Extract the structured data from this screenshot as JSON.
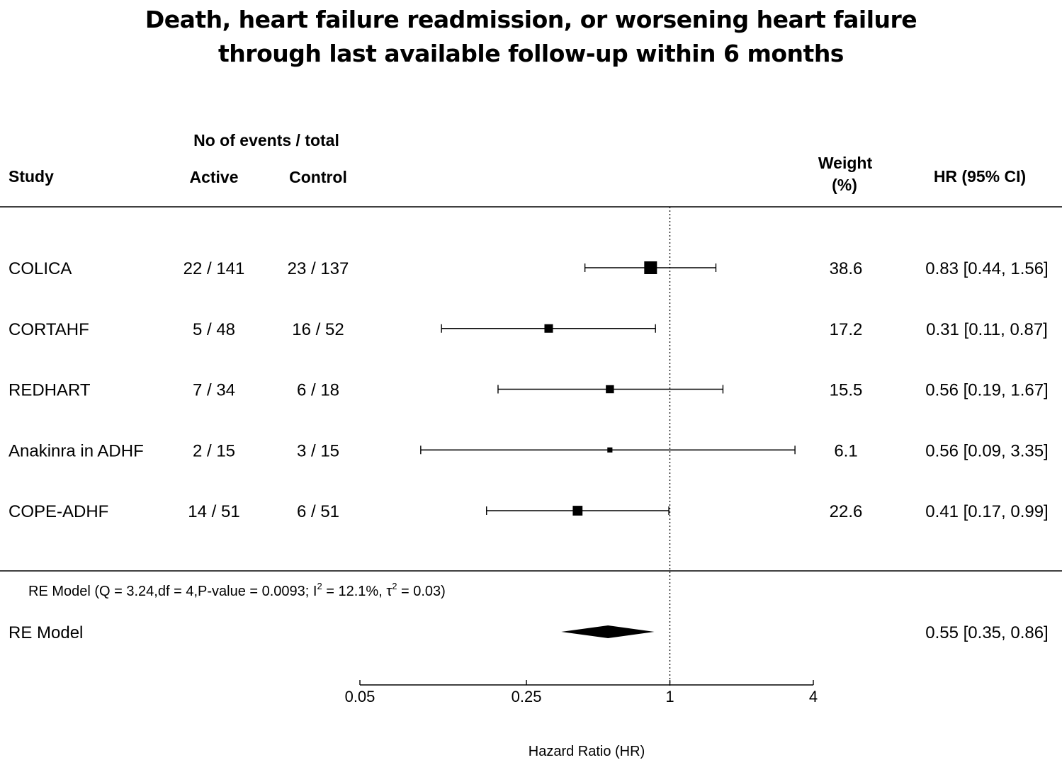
{
  "chart_data": {
    "type": "forest",
    "title_line1": "Death, heart failure readmission, or worsening heart failure",
    "title_line2": "through last available follow-up within 6 months",
    "headers": {
      "group": "No of events / total",
      "study": "Study",
      "active": "Active",
      "control": "Control",
      "weight_line1": "Weight",
      "weight_line2": "(%)",
      "hr": "HR (95% CI)"
    },
    "studies": [
      {
        "name": "COLICA",
        "active": "22 / 141",
        "control": "23 / 137",
        "hr": 0.83,
        "lower": 0.44,
        "upper": 1.56,
        "weight": "38.6",
        "hr_text": "0.83 [0.44, 1.56]"
      },
      {
        "name": "CORTAHF",
        "active": "5 / 48",
        "control": "16 / 52",
        "hr": 0.31,
        "lower": 0.11,
        "upper": 0.87,
        "weight": "17.2",
        "hr_text": "0.31 [0.11, 0.87]"
      },
      {
        "name": "REDHART",
        "active": "7 / 34",
        "control": "6 / 18",
        "hr": 0.56,
        "lower": 0.19,
        "upper": 1.67,
        "weight": "15.5",
        "hr_text": "0.56 [0.19, 1.67]"
      },
      {
        "name": "Anakinra in ADHF",
        "active": "2 / 15",
        "control": "3 / 15",
        "hr": 0.56,
        "lower": 0.09,
        "upper": 3.35,
        "weight": "6.1",
        "hr_text": "0.56 [0.09, 3.35]"
      },
      {
        "name": "COPE-ADHF",
        "active": "14 / 51",
        "control": "6 / 51",
        "hr": 0.41,
        "lower": 0.17,
        "upper": 0.99,
        "weight": "22.6",
        "hr_text": "0.41 [0.17, 0.99]"
      }
    ],
    "model": {
      "stats_a": "RE Model (Q = 3.24,df = 4,P-value = 0.0093; I",
      "stats_sup1": "2",
      "stats_b": " = 12.1%, τ",
      "stats_sup2": "2",
      "stats_c": " = 0.03)",
      "label": "RE Model",
      "hr": 0.55,
      "lower": 0.35,
      "upper": 0.86,
      "hr_text": "0.55 [0.35, 0.86]"
    },
    "x_axis": {
      "scale": "log",
      "label": "Hazard Ratio (HR)",
      "ticks": [
        0.05,
        0.25,
        1,
        4
      ],
      "tick_labels": [
        "0.05",
        "0.25",
        "1",
        "4"
      ],
      "range": [
        0.05,
        4
      ],
      "reference_line": 1
    }
  }
}
